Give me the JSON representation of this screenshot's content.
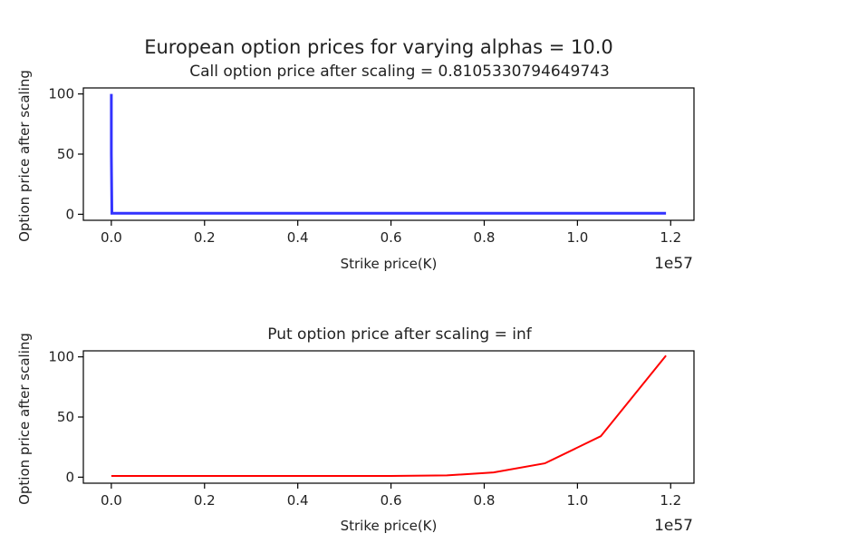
{
  "figure": {
    "suptitle": "European option prices for varying alphas = 10.0"
  },
  "chart_data": [
    {
      "type": "line",
      "title": "Call option price after scaling = 0.8105330794649743",
      "xlabel": "Strike price(K)",
      "ylabel": "Option price after scaling",
      "x_offset_label": "1e57",
      "xlim": [
        -0.06,
        1.25
      ],
      "ylim": [
        -5,
        105
      ],
      "x_ticks": [
        0.0,
        0.2,
        0.4,
        0.6,
        0.8,
        1.0,
        1.2
      ],
      "x_tick_labels": [
        "0.0",
        "0.2",
        "0.4",
        "0.6",
        "0.8",
        "1.0",
        "1.2"
      ],
      "y_ticks": [
        0,
        50,
        100
      ],
      "y_tick_labels": [
        "0",
        "50",
        "100"
      ],
      "grid": false,
      "series": [
        {
          "color": "#3333ff",
          "x": [
            0.0,
            0.0,
            0.0012,
            0.12,
            0.24,
            0.36,
            0.48,
            0.6,
            0.72,
            0.84,
            0.96,
            1.08,
            1.19
          ],
          "y": [
            100,
            50,
            0.8,
            0.8,
            0.8,
            0.8,
            0.8,
            0.8,
            0.8,
            0.8,
            0.8,
            0.8,
            0.8
          ]
        }
      ]
    },
    {
      "type": "line",
      "title": "Put option price after scaling = inf",
      "xlabel": "Strike price(K)",
      "ylabel": "Option price after scaling",
      "x_offset_label": "1e57",
      "xlim": [
        -0.06,
        1.25
      ],
      "ylim": [
        -5,
        105
      ],
      "x_ticks": [
        0.0,
        0.2,
        0.4,
        0.6,
        0.8,
        1.0,
        1.2
      ],
      "x_tick_labels": [
        "0.0",
        "0.2",
        "0.4",
        "0.6",
        "0.8",
        "1.0",
        "1.2"
      ],
      "y_ticks": [
        0,
        50,
        100
      ],
      "y_tick_labels": [
        "0",
        "50",
        "100"
      ],
      "grid": false,
      "series": [
        {
          "color": "#ff0000",
          "x": [
            0.0,
            0.12,
            0.24,
            0.36,
            0.48,
            0.6,
            0.72,
            0.82,
            0.93,
            1.05,
            1.19
          ],
          "y": [
            1,
            1,
            1,
            1,
            1,
            1,
            1.5,
            4,
            11.5,
            34,
            101
          ]
        }
      ]
    }
  ]
}
